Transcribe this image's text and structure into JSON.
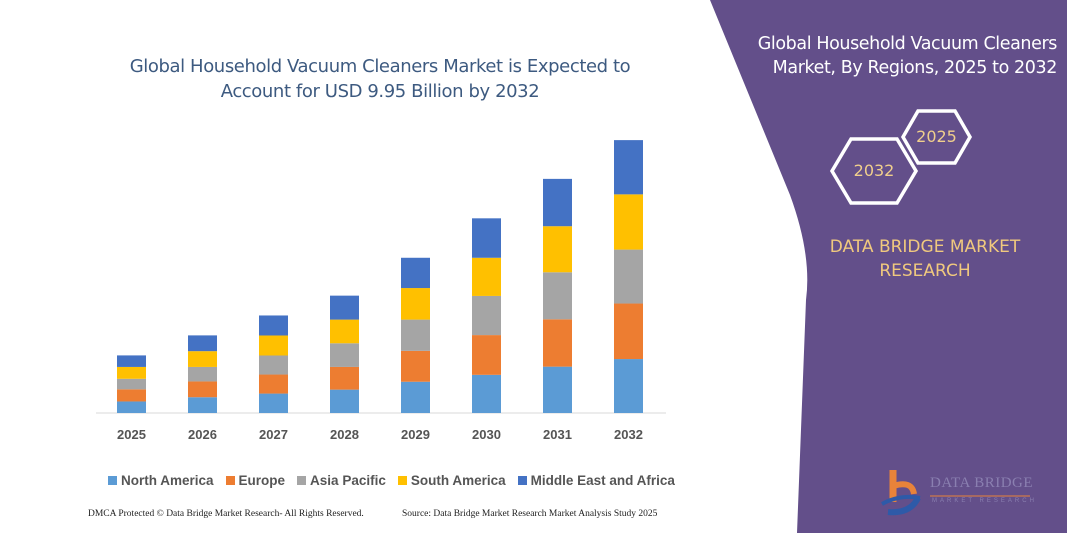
{
  "title": "Global Household Vacuum Cleaners Market is Expected to Account for USD 9.95 Billion by 2032",
  "title_lines": [
    "Global Household Vacuum Cleaners Market is Expected to",
    "Account for USD 9.95 Billion by 2032"
  ],
  "side_panel": {
    "title_lines": [
      "Global Household Vacuum Cleaners",
      "Market, By Regions, 2025 to 2032"
    ],
    "hex_start": "2025",
    "hex_end": "2032",
    "brand_lines": [
      "DATA BRIDGE MARKET",
      "RESEARCH"
    ],
    "logo_text": "DATA BRIDGE",
    "logo_subtext": "MARKET RESEARCH",
    "background_color": "#634f8a"
  },
  "footer": {
    "left": "DMCA Protected © Data Bridge Market Research- All Rights Reserved.",
    "right": "Source: Data Bridge Market Research Market Analysis Study 2025"
  },
  "chart_data": {
    "type": "bar",
    "stacked": true,
    "title": "Global Household Vacuum Cleaners Market is Expected to Account for USD 9.95 Billion by 2032",
    "xlabel": "",
    "ylabel": "",
    "y_axis_shown": false,
    "grid": false,
    "legend_position": "bottom",
    "units": "relative (no value axis printed)",
    "ylim": [
      0,
      290
    ],
    "categories": [
      "2025",
      "2026",
      "2027",
      "2028",
      "2029",
      "2030",
      "2031",
      "2032"
    ],
    "series": [
      {
        "name": "North America",
        "color": "#5b9bd5",
        "values": [
          11.7,
          16,
          19.7,
          23.7,
          31.7,
          38.7,
          47,
          54.7
        ]
      },
      {
        "name": "Europe",
        "color": "#ed7d31",
        "values": [
          12.3,
          16,
          19.3,
          23,
          31.3,
          40.3,
          48,
          56.3
        ]
      },
      {
        "name": "Asia Pacific",
        "color": "#a5a5a5",
        "values": [
          10.7,
          14.7,
          19.3,
          24,
          31.7,
          39.7,
          47.7,
          54.7
        ]
      },
      {
        "name": "South America",
        "color": "#ffc000",
        "values": [
          12,
          16,
          20.3,
          24,
          32,
          38.7,
          46.7,
          56
        ]
      },
      {
        "name": "Middle East and Africa",
        "color": "#4472c4",
        "values": [
          11.7,
          16,
          20.3,
          24.3,
          30.7,
          40,
          48,
          55
        ]
      }
    ]
  }
}
